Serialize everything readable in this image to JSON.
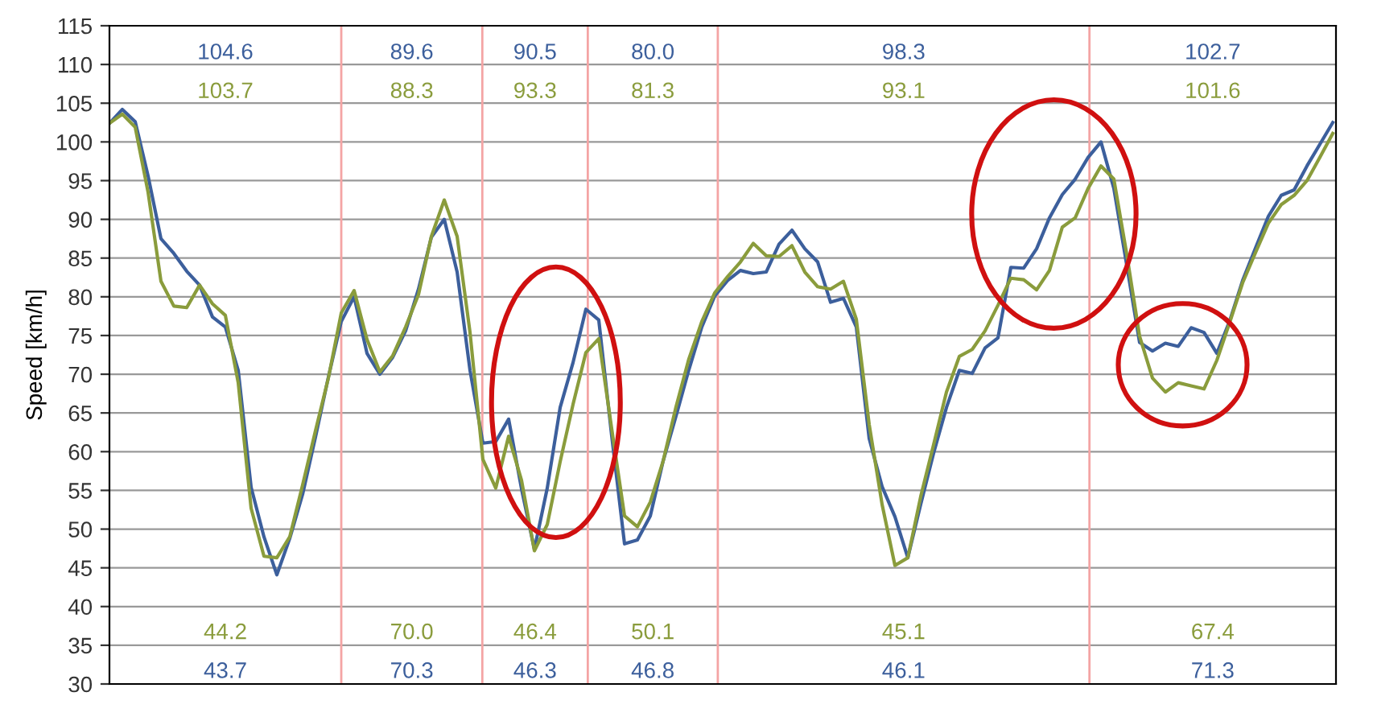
{
  "chart_data": {
    "type": "line",
    "ylabel": "Speed [km/h]",
    "categories": [
      null,
      null,
      null,
      null,
      null,
      null,
      null,
      null,
      null,
      null,
      null,
      null,
      null,
      null,
      null,
      null,
      null,
      null,
      null,
      null,
      null,
      null,
      null,
      null,
      null,
      null,
      null,
      null,
      null,
      null,
      null,
      null,
      null,
      null,
      null,
      null,
      null,
      null,
      null,
      null,
      null,
      null,
      null,
      null,
      null,
      null,
      null,
      null,
      null,
      null,
      null,
      null,
      null,
      null,
      null,
      null,
      null,
      null,
      null,
      null,
      null,
      null,
      null,
      null,
      null,
      null,
      null,
      null,
      null,
      null,
      null,
      null,
      null,
      null,
      null,
      null,
      null,
      null,
      null,
      null,
      null,
      null,
      null,
      null,
      null,
      null,
      null,
      null,
      null,
      null,
      null,
      null,
      null,
      null,
      null,
      null
    ],
    "ylim": [
      30,
      115
    ],
    "yticks": [
      30,
      35,
      40,
      45,
      50,
      55,
      60,
      65,
      70,
      75,
      80,
      85,
      90,
      95,
      100,
      105,
      110,
      115
    ],
    "tick_labels": "y",
    "grid": true,
    "series": [
      {
        "color": "#3c5f9c",
        "values": [
          102.4,
          104.2,
          102.6,
          95.6,
          87.5,
          85.6,
          83.3,
          81.5,
          77.4,
          76.1,
          70.5,
          55.4,
          49.0,
          44.1,
          48.8,
          54.5,
          61.9,
          69.6,
          76.8,
          80.0,
          72.7,
          70.0,
          72.2,
          75.6,
          81.0,
          87.7,
          90.0,
          83.2,
          70.5,
          61.1,
          61.3,
          64.2,
          55.2,
          47.4,
          55.3,
          65.7,
          71.5,
          78.4,
          77.0,
          62.1,
          48.1,
          48.6,
          51.7,
          58.8,
          64.6,
          70.6,
          76.1,
          80.1,
          82.1,
          83.4,
          83.0,
          83.2,
          86.8,
          88.6,
          86.2,
          84.5,
          79.3,
          79.8,
          76.1,
          61.7,
          55.5,
          51.6,
          46.3,
          53.2,
          59.8,
          65.7,
          70.5,
          70.1,
          73.4,
          74.7,
          83.8,
          83.7,
          86.2,
          90.2,
          93.2,
          95.2,
          98.0,
          100.0,
          94.0,
          84.1,
          74.1,
          73.0,
          74.0,
          73.6,
          76.0,
          75.4,
          72.7,
          76.9,
          82.1,
          86.3,
          90.4,
          93.1,
          93.8,
          96.9,
          99.7,
          102.5
        ]
      },
      {
        "color": "#8a9c3c",
        "values": [
          102.4,
          103.6,
          101.9,
          93.5,
          82.0,
          78.8,
          78.6,
          81.5,
          79.1,
          77.6,
          68.9,
          52.7,
          46.5,
          46.3,
          49.0,
          55.7,
          62.7,
          69.5,
          77.9,
          80.8,
          74.5,
          70.3,
          72.4,
          76.1,
          80.3,
          87.8,
          92.5,
          87.8,
          75.4,
          59.0,
          55.3,
          62.0,
          56.3,
          47.2,
          50.6,
          58.7,
          66.1,
          72.8,
          74.6,
          63.0,
          51.7,
          50.3,
          53.5,
          58.8,
          65.8,
          72.0,
          76.8,
          80.5,
          82.6,
          84.5,
          86.9,
          85.3,
          85.2,
          86.6,
          83.2,
          81.3,
          81.0,
          82.0,
          77.1,
          63.5,
          53.2,
          45.3,
          46.3,
          54.2,
          60.9,
          67.7,
          72.3,
          73.2,
          75.6,
          78.9,
          82.4,
          82.2,
          80.9,
          83.4,
          89.0,
          90.2,
          94.0,
          96.9,
          95.2,
          85.5,
          74.9,
          69.5,
          67.7,
          68.9,
          68.5,
          68.1,
          71.8,
          76.7,
          81.8,
          85.7,
          89.5,
          91.9,
          93.1,
          95.0,
          98.0,
          101.1
        ]
      }
    ],
    "annotations": [
      "104.6",
      "103.7",
      "44.2",
      "43.7",
      "89.6",
      "88.3",
      "70.0",
      "70.3",
      "90.5",
      "93.3",
      "46.4",
      "46.3",
      "80.0",
      "81.3",
      "50.1",
      "46.8",
      "98.3",
      "93.1",
      "45.1",
      "46.1",
      "102.7",
      "101.6",
      "67.4",
      "71.3"
    ]
  }
}
